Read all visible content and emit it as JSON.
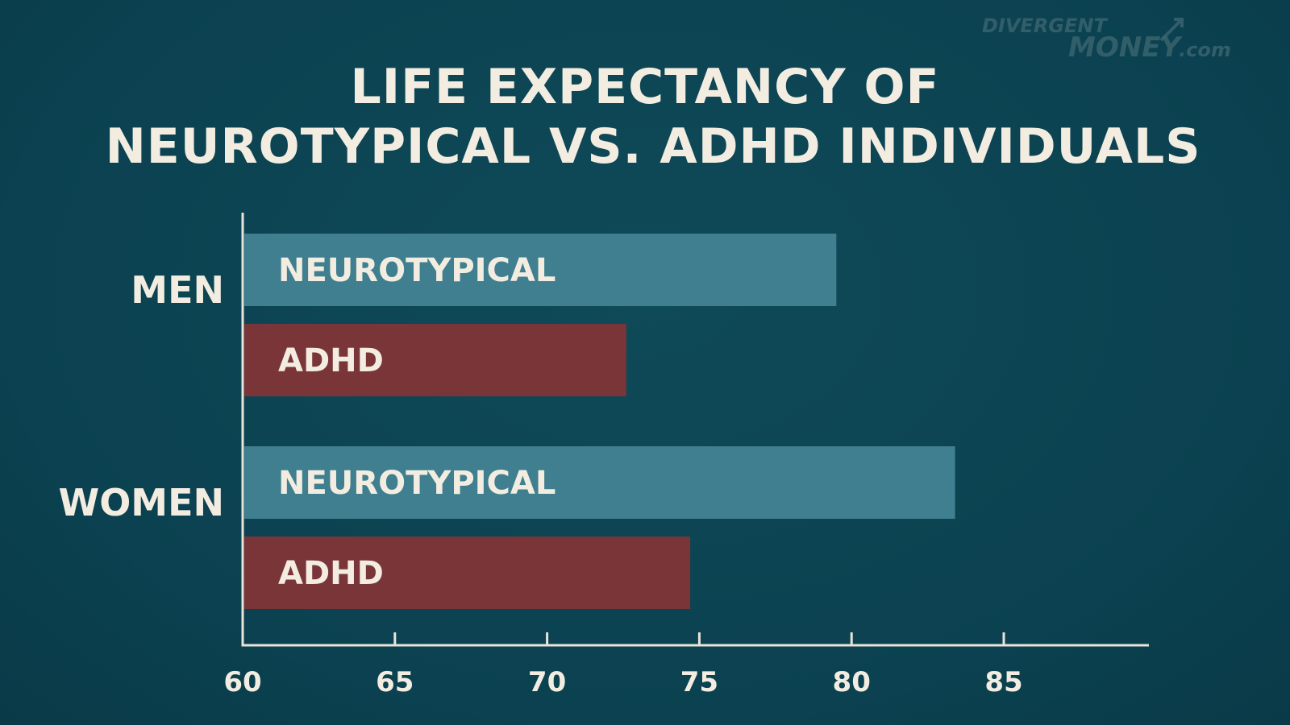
{
  "logo": {
    "line1": "DIVERGENT",
    "line2": "MONEY",
    "suffix": ".com",
    "color": "#3f6873"
  },
  "colors": {
    "background": "#0c4351",
    "neurotypical": "#3f7f8f",
    "adhd": "#7a3538",
    "text": "#f3ede1",
    "axis": "#e8e4da"
  },
  "chart_data": {
    "type": "bar",
    "orientation": "horizontal",
    "title": "LIFE EXPECTANCY OF NEUROTYPICAL VS. ADHD INDIVIDUALS",
    "title_lines": [
      "LIFE EXPECTANCY OF",
      "NEUROTYPICAL VS. ADHD INDIVIDUALS"
    ],
    "categories": [
      "MEN",
      "WOMEN"
    ],
    "series": [
      {
        "name": "NEUROTYPICAL",
        "values": [
          79.5,
          83.4
        ],
        "color": "#3f7f8f"
      },
      {
        "name": "ADHD",
        "values": [
          72.6,
          74.7
        ],
        "color": "#7a3538"
      }
    ],
    "xlim": [
      60,
      88
    ],
    "xticks": [
      60,
      65,
      70,
      75,
      80,
      85
    ],
    "xlabel": "",
    "ylabel": "",
    "grid": false,
    "legend": "none (labels inside bars)"
  }
}
